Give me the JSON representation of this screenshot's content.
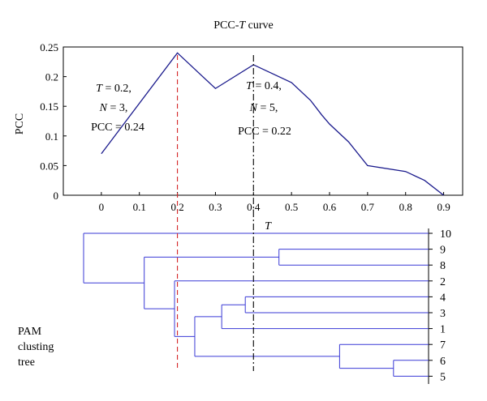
{
  "chart_data": [
    {
      "type": "line",
      "title_prefix": "PCC-",
      "title_italic": "T",
      "title_suffix": " curve",
      "xlabel": "T",
      "ylabel": "PCC",
      "xlim": [
        -0.1,
        0.95
      ],
      "ylim": [
        0,
        0.25
      ],
      "xticks": [
        "0",
        "0.1",
        "0.2",
        "0.3",
        "0.4",
        "0.5",
        "0.6",
        "0.7",
        "0.8",
        "0.9"
      ],
      "yticks": [
        "0",
        "0.05",
        "0.1",
        "0.15",
        "0.2",
        "0.25"
      ],
      "series": [
        {
          "color": "#1a1a8c",
          "x": [
            0,
            0.2,
            0.3,
            0.4,
            0.5,
            0.55,
            0.58,
            0.6,
            0.65,
            0.7,
            0.8,
            0.85,
            0.9
          ],
          "y": [
            0.07,
            0.24,
            0.18,
            0.22,
            0.19,
            0.16,
            0.135,
            0.12,
            0.09,
            0.05,
            0.04,
            0.025,
            0
          ]
        }
      ],
      "reference_lines": [
        {
          "x": 0.2,
          "color": "#d62728",
          "style": "dashed"
        },
        {
          "x": 0.4,
          "color": "#000000",
          "style": "dashdot"
        }
      ],
      "annotations": [
        {
          "lines": [
            "T = 0.2,",
            "N = 3,",
            "PCC = 0.24"
          ]
        },
        {
          "lines": [
            "T = 0.4,",
            "N = 5,",
            "PCC = 0.22"
          ]
        }
      ]
    },
    {
      "type": "dendrogram",
      "title_lines": [
        "PAM",
        "clusting",
        "tree"
      ],
      "color": "#3a3ad6",
      "leaf_order": [
        "10",
        "9",
        "8",
        "2",
        "4",
        "3",
        "1",
        "7",
        "6",
        "5"
      ],
      "merges": [
        {
          "children": [
            "4",
            "3"
          ],
          "height": 0.48
        },
        {
          "children": [
            "(4,3)",
            "1"
          ],
          "height": 0.41
        },
        {
          "children": [
            "6",
            "5"
          ],
          "height": 0.92
        },
        {
          "children": [
            "7",
            "(6,5)"
          ],
          "height": 0.76
        },
        {
          "children": [
            "((4,3),1)",
            "(7,(6,5))"
          ],
          "height": 0.33
        },
        {
          "children": [
            "2",
            "(((4,3),1),(7,(6,5)))"
          ],
          "height": 0.27
        },
        {
          "children": [
            "9",
            "8"
          ],
          "height": 0.58
        },
        {
          "children": [
            "(9,8)",
            "rest"
          ],
          "height": 0.18
        },
        {
          "children": [
            "10",
            "all"
          ],
          "height": 0.0
        }
      ]
    }
  ]
}
